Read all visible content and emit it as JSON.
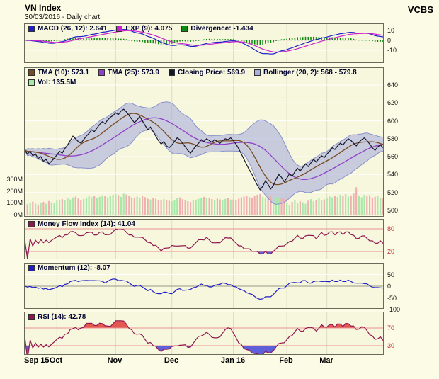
{
  "header": {
    "title": "VN Index",
    "subtitle": "30/03/2016 - Daily chart",
    "brand": "VCBS"
  },
  "panels": {
    "macd": {
      "legend": [
        {
          "text": "MACD (26, 12): 2.641",
          "color": "#2020c8"
        },
        {
          "text": "EXP (9): 4.075",
          "color": "#cc22cc"
        },
        {
          "text": "Divergence: -1.434",
          "color": "#108a10"
        }
      ],
      "ticks": [
        {
          "label": "10",
          "v": 10
        },
        {
          "label": "0",
          "v": 0
        },
        {
          "label": "-10",
          "v": -10
        }
      ]
    },
    "main": {
      "legend_row1": [
        {
          "text": "TMA (10): 573.1",
          "color": "#7a4a20"
        },
        {
          "text": "TMA (25): 573.9",
          "color": "#9040c8"
        },
        {
          "text": "Closing Price: 569.9",
          "color": "#15152a"
        },
        {
          "text": "Bollinger (20, 2): 568 - 579.8",
          "color": "#a8b0dc"
        }
      ],
      "legend_row2": [
        {
          "text": "Vol: 135.5M",
          "color": "#a8e8a8"
        }
      ],
      "price_ticks": [
        {
          "label": "640",
          "v": 640
        },
        {
          "label": "620",
          "v": 620
        },
        {
          "label": "600",
          "v": 600
        },
        {
          "label": "580",
          "v": 580
        },
        {
          "label": "560",
          "v": 560
        },
        {
          "label": "540",
          "v": 540
        },
        {
          "label": "520",
          "v": 520
        },
        {
          "label": "500",
          "v": 500
        }
      ],
      "volume_ticks": [
        {
          "label": "300M",
          "v": 300
        },
        {
          "label": "200M",
          "v": 200
        },
        {
          "label": "100M",
          "v": 100
        },
        {
          "label": "0M",
          "v": 0
        }
      ]
    },
    "mfi": {
      "legend": [
        {
          "text": "Money Flow Index (14): 41.04",
          "color": "#901850"
        }
      ],
      "ticks": [
        {
          "label": "80",
          "v": 80
        },
        {
          "label": "20",
          "v": 20
        }
      ]
    },
    "momentum": {
      "legend": [
        {
          "text": "Momentum (12): -8.07",
          "color": "#2020c8"
        }
      ],
      "ticks": [
        {
          "label": "50",
          "v": 50
        },
        {
          "label": "0",
          "v": 0
        },
        {
          "label": "-50",
          "v": -50
        },
        {
          "label": "-100",
          "v": -100
        }
      ]
    },
    "rsi": {
      "legend": [
        {
          "text": "RSI (14): 42.78",
          "color": "#901850"
        }
      ],
      "ticks": [
        {
          "label": "70",
          "v": 70
        },
        {
          "label": "30",
          "v": 30
        }
      ]
    }
  },
  "colors": {
    "page_bg": "#fbfbe6",
    "plot_bg": "#f7f7dd",
    "grid": "#ffffff",
    "grid_v": "#ddddc6",
    "border": "#6a6a5a",
    "macd_line": "#2020c8",
    "exp_line": "#cc22cc",
    "divergence": "#108a10",
    "tma10": "#7a4a20",
    "tma25": "#9040c8",
    "close": "#15152a",
    "bollinger_fill": "#a0a8d8",
    "bollinger_edge": "#8890cc",
    "vol_up": "#a8e8a8",
    "vol_down": "#f0b0b0",
    "mfi": "#901850",
    "momentum": "#2020c8",
    "rsi": "#901850",
    "threshold": "#e89090",
    "fill_red": "#e03030",
    "fill_blue": "#3838d8",
    "tick_red": "#c03030"
  },
  "chart_data": {
    "type": "line",
    "title": "VN Index - Daily chart (30/03/2016)",
    "x_labels": [
      "Sep 15",
      "Oct",
      "Nov",
      "Dec",
      "Jan 16",
      "Feb",
      "Mar"
    ],
    "x_label_indices": [
      0,
      12,
      34,
      55,
      78,
      98,
      113
    ],
    "close": [
      567,
      563,
      566,
      561,
      563,
      558,
      560,
      555,
      557,
      552,
      555,
      558,
      562,
      566,
      564,
      569,
      573,
      578,
      583,
      580,
      577,
      575,
      579,
      583,
      586,
      590,
      588,
      592,
      596,
      599,
      597,
      601,
      604,
      606,
      609,
      607,
      611,
      613,
      610,
      606,
      602,
      598,
      601,
      605,
      600,
      595,
      590,
      593,
      588,
      583,
      578,
      574,
      577,
      572,
      570,
      573,
      577,
      581,
      579,
      575,
      571,
      567,
      564,
      568,
      572,
      575,
      579,
      577,
      580,
      578,
      576,
      579,
      577,
      575,
      578,
      580,
      579,
      581,
      578,
      574,
      569,
      563,
      557,
      551,
      545,
      540,
      534,
      528,
      523,
      527,
      533,
      529,
      524,
      528,
      535,
      540,
      537,
      532,
      536,
      541,
      538,
      543,
      547,
      544,
      548,
      552,
      549,
      553,
      557,
      554,
      558,
      561,
      559,
      563,
      566,
      570,
      568,
      572,
      575,
      573,
      577,
      580,
      578,
      575,
      572,
      576,
      579,
      581,
      578,
      574,
      570,
      567,
      571,
      573,
      570
    ],
    "volume_millions": [
      95,
      88,
      102,
      110,
      93,
      85,
      99,
      107,
      92,
      115,
      104,
      98,
      118,
      125,
      132,
      121,
      138,
      128,
      145,
      152,
      136,
      124,
      131,
      142,
      155,
      148,
      160,
      139,
      151,
      163,
      158,
      147,
      156,
      168,
      172,
      165,
      150,
      178,
      170,
      158,
      146,
      139,
      152,
      144,
      161,
      148,
      135,
      128,
      141,
      133,
      126,
      119,
      131,
      124,
      117,
      112,
      126,
      138,
      146,
      131,
      122,
      114,
      108,
      119,
      127,
      135,
      142,
      150,
      137,
      144,
      132,
      125,
      136,
      129,
      121,
      133,
      140,
      127,
      128,
      119,
      135,
      146,
      152,
      161,
      148,
      139,
      155,
      168,
      174,
      151,
      142,
      136,
      158,
      147,
      139,
      150,
      143,
      134,
      96,
      84,
      108,
      121,
      99,
      113,
      105,
      92,
      118,
      131,
      112,
      124,
      137,
      119,
      128,
      141,
      153,
      146,
      161,
      149,
      167,
      158,
      174,
      152,
      163,
      178,
      232,
      157,
      146,
      168,
      155,
      164,
      143,
      151,
      159,
      142,
      136
    ],
    "indicators": {
      "macd_params": [
        26,
        12
      ],
      "exp_param": 9,
      "tma_params": [
        10,
        25
      ],
      "bollinger_params": [
        20,
        2
      ],
      "mfi_param": 14,
      "momentum_param": 12,
      "rsi_param": 14,
      "latest": {
        "macd": 2.641,
        "exp": 4.075,
        "divergence": -1.434,
        "tma10": 573.1,
        "tma25": 573.9,
        "close": 569.9,
        "bollinger_low": 568,
        "bollinger_high": 579.8,
        "volume": "135.5M",
        "mfi": 41.04,
        "momentum": -8.07,
        "rsi": 42.78
      }
    },
    "y_axes": {
      "macd_ticks": [
        10,
        0,
        -10
      ],
      "price_ticks": [
        640,
        620,
        600,
        580,
        560,
        540,
        520,
        500
      ],
      "volume_ticks_millions": [
        300,
        200,
        100,
        0
      ],
      "mfi_thresholds": [
        80,
        20
      ],
      "momentum_ticks": [
        50,
        0,
        -50,
        -100
      ],
      "rsi_thresholds": [
        70,
        30
      ]
    },
    "grid": true,
    "legend_position": "top-left-of-each-panel"
  }
}
